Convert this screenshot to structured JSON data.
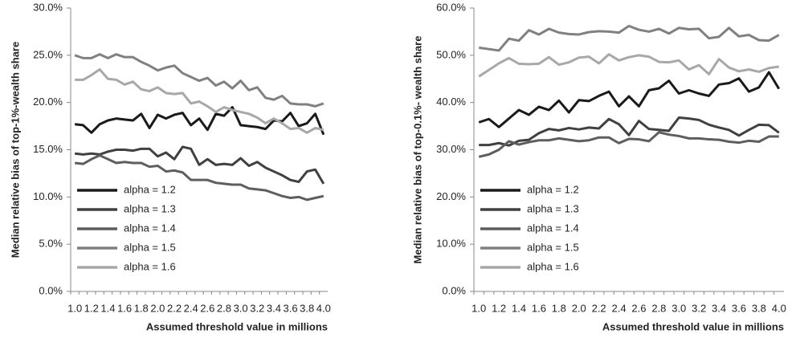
{
  "chart_data": [
    {
      "type": "line",
      "y_label": "Median relative bias of top-1%-wealth share",
      "x_label": "Assumed threshold value in millions",
      "categories": [
        "1.0",
        null,
        "1.2",
        null,
        "1.4",
        null,
        "1.6",
        null,
        "1.8",
        null,
        "2.0",
        null,
        "2.2",
        null,
        "2.4",
        null,
        "2.6",
        null,
        "2.8",
        null,
        "3.0",
        null,
        "3.2",
        null,
        "3.4",
        null,
        "3.6",
        null,
        "3.8",
        null,
        "4.0"
      ],
      "ylim": [
        0,
        30
      ],
      "yticks": [
        {
          "value": 0,
          "label": "0.0%"
        },
        {
          "value": 5,
          "label": "5.0%"
        },
        {
          "value": 10,
          "label": "10.0%"
        },
        {
          "value": 15,
          "label": "15.0%"
        },
        {
          "value": 20,
          "label": "20.0%"
        },
        {
          "value": 25,
          "label": "25.0%"
        },
        {
          "value": 30,
          "label": "30.0%"
        }
      ],
      "legend": "lower left",
      "series": [
        {
          "name": "alpha = 1.2",
          "color": "#1a1a1a",
          "values": [
            17.7,
            17.6,
            16.8,
            17.7,
            18.1,
            18.3,
            18.2,
            18.1,
            18.8,
            17.3,
            18.7,
            18.3,
            18.7,
            18.9,
            17.6,
            18.3,
            17.1,
            18.8,
            18.6,
            19.5,
            17.6,
            17.5,
            17.4,
            17.2,
            18.1,
            18.0,
            18.9,
            17.5,
            17.8,
            18.8,
            16.6
          ]
        },
        {
          "name": "alpha = 1.3",
          "color": "#404040",
          "values": [
            14.6,
            14.5,
            14.6,
            14.5,
            14.8,
            15.0,
            15.0,
            14.9,
            15.1,
            15.1,
            14.3,
            14.7,
            14.0,
            15.3,
            15.1,
            13.4,
            14.0,
            13.4,
            13.5,
            13.4,
            14.1,
            13.3,
            13.7,
            13.1,
            12.7,
            12.3,
            11.8,
            11.6,
            12.7,
            12.9,
            11.4
          ]
        },
        {
          "name": "alpha = 1.4",
          "color": "#5e5e5e",
          "values": [
            13.6,
            13.5,
            14.0,
            14.4,
            14.0,
            13.6,
            13.7,
            13.6,
            13.6,
            13.2,
            13.3,
            12.7,
            12.8,
            12.6,
            11.8,
            11.8,
            11.8,
            11.5,
            11.4,
            11.3,
            11.3,
            10.9,
            10.8,
            10.7,
            10.4,
            10.1,
            9.9,
            10.0,
            9.7,
            9.9,
            10.1
          ]
        },
        {
          "name": "alpha = 1.5",
          "color": "#808080",
          "values": [
            25.0,
            24.7,
            24.7,
            25.1,
            24.7,
            25.1,
            24.8,
            24.8,
            24.3,
            23.9,
            23.4,
            23.7,
            23.9,
            23.1,
            22.7,
            22.3,
            22.6,
            21.8,
            22.2,
            21.5,
            22.3,
            21.3,
            21.6,
            20.5,
            20.3,
            20.7,
            19.9,
            19.8,
            19.8,
            19.6,
            19.9
          ]
        },
        {
          "name": "alpha = 1.6",
          "color": "#a8a8a8",
          "values": [
            22.4,
            22.4,
            22.9,
            23.5,
            22.5,
            22.4,
            21.9,
            22.2,
            21.4,
            21.2,
            21.6,
            21.0,
            20.9,
            21.0,
            19.9,
            20.1,
            19.6,
            19.0,
            19.5,
            19.2,
            19.0,
            18.8,
            18.4,
            17.8,
            18.3,
            17.8,
            17.2,
            17.3,
            16.8,
            17.3,
            17.1
          ]
        }
      ]
    },
    {
      "type": "line",
      "y_label": "Median relative bias of top-0.1%- wealth share",
      "x_label": "Assumed threshold value in millions",
      "categories": [
        "1.0",
        null,
        "1.2",
        null,
        "1.4",
        null,
        "1.6",
        null,
        "1.8",
        null,
        "2.0",
        null,
        "2.2",
        null,
        "2.4",
        null,
        "2.6",
        null,
        "2.8",
        null,
        "3.0",
        null,
        "3.2",
        null,
        "3.4",
        null,
        "3.6",
        null,
        "3.8",
        null,
        "4.0"
      ],
      "ylim": [
        0,
        60
      ],
      "yticks": [
        {
          "value": 0,
          "label": "0.0%"
        },
        {
          "value": 10,
          "label": "10.0%"
        },
        {
          "value": 20,
          "label": "20.0%"
        },
        {
          "value": 30,
          "label": "30.0%"
        },
        {
          "value": 40,
          "label": "40.0%"
        },
        {
          "value": 50,
          "label": "50.0%"
        },
        {
          "value": 60,
          "label": "60.0%"
        }
      ],
      "legend": "lower left",
      "series": [
        {
          "name": "alpha = 1.2",
          "color": "#1a1a1a",
          "values": [
            35.8,
            36.5,
            34.8,
            36.6,
            38.4,
            37.4,
            39.1,
            38.4,
            40.4,
            37.9,
            40.5,
            40.3,
            41.4,
            42.3,
            39.2,
            41.3,
            39.2,
            42.6,
            43.0,
            44.6,
            41.9,
            42.6,
            41.9,
            41.4,
            43.8,
            44.1,
            45.1,
            42.3,
            43.2,
            46.4,
            42.9
          ]
        },
        {
          "name": "alpha = 1.3",
          "color": "#404040",
          "values": [
            31.0,
            31.0,
            31.4,
            30.9,
            31.9,
            32.1,
            33.5,
            34.4,
            34.1,
            34.6,
            34.3,
            34.7,
            34.5,
            36.5,
            35.4,
            33.1,
            36.1,
            34.4,
            34.2,
            34.0,
            36.8,
            36.6,
            36.3,
            35.3,
            34.7,
            34.2,
            33.0,
            34.2,
            35.3,
            35.2,
            33.6
          ]
        },
        {
          "name": "alpha = 1.4",
          "color": "#5e5e5e",
          "values": [
            28.5,
            29.0,
            30.0,
            31.8,
            31.1,
            31.6,
            32.0,
            32.0,
            32.4,
            32.1,
            31.8,
            32.0,
            32.6,
            32.6,
            31.4,
            32.3,
            32.2,
            31.8,
            33.7,
            33.2,
            32.9,
            32.4,
            32.4,
            32.2,
            32.1,
            31.7,
            31.5,
            31.9,
            31.7,
            32.8,
            32.8
          ]
        },
        {
          "name": "alpha = 1.5",
          "color": "#808080",
          "values": [
            51.6,
            51.3,
            51.0,
            53.5,
            53.1,
            55.3,
            54.4,
            55.6,
            54.8,
            54.5,
            54.4,
            54.9,
            55.1,
            55.0,
            54.8,
            56.2,
            55.4,
            55.0,
            55.6,
            54.6,
            55.8,
            55.5,
            55.6,
            53.6,
            53.9,
            55.8,
            54.0,
            54.3,
            53.2,
            53.1,
            54.3
          ]
        },
        {
          "name": "alpha = 1.6",
          "color": "#a8a8a8",
          "values": [
            45.5,
            46.9,
            48.3,
            49.4,
            48.2,
            48.1,
            48.2,
            49.6,
            48.0,
            48.5,
            49.5,
            49.7,
            48.3,
            50.2,
            48.9,
            49.6,
            50.0,
            49.7,
            48.6,
            48.5,
            48.9,
            47.0,
            47.9,
            46.0,
            49.2,
            47.4,
            46.6,
            47.0,
            46.5,
            47.3,
            47.6
          ]
        }
      ]
    }
  ]
}
